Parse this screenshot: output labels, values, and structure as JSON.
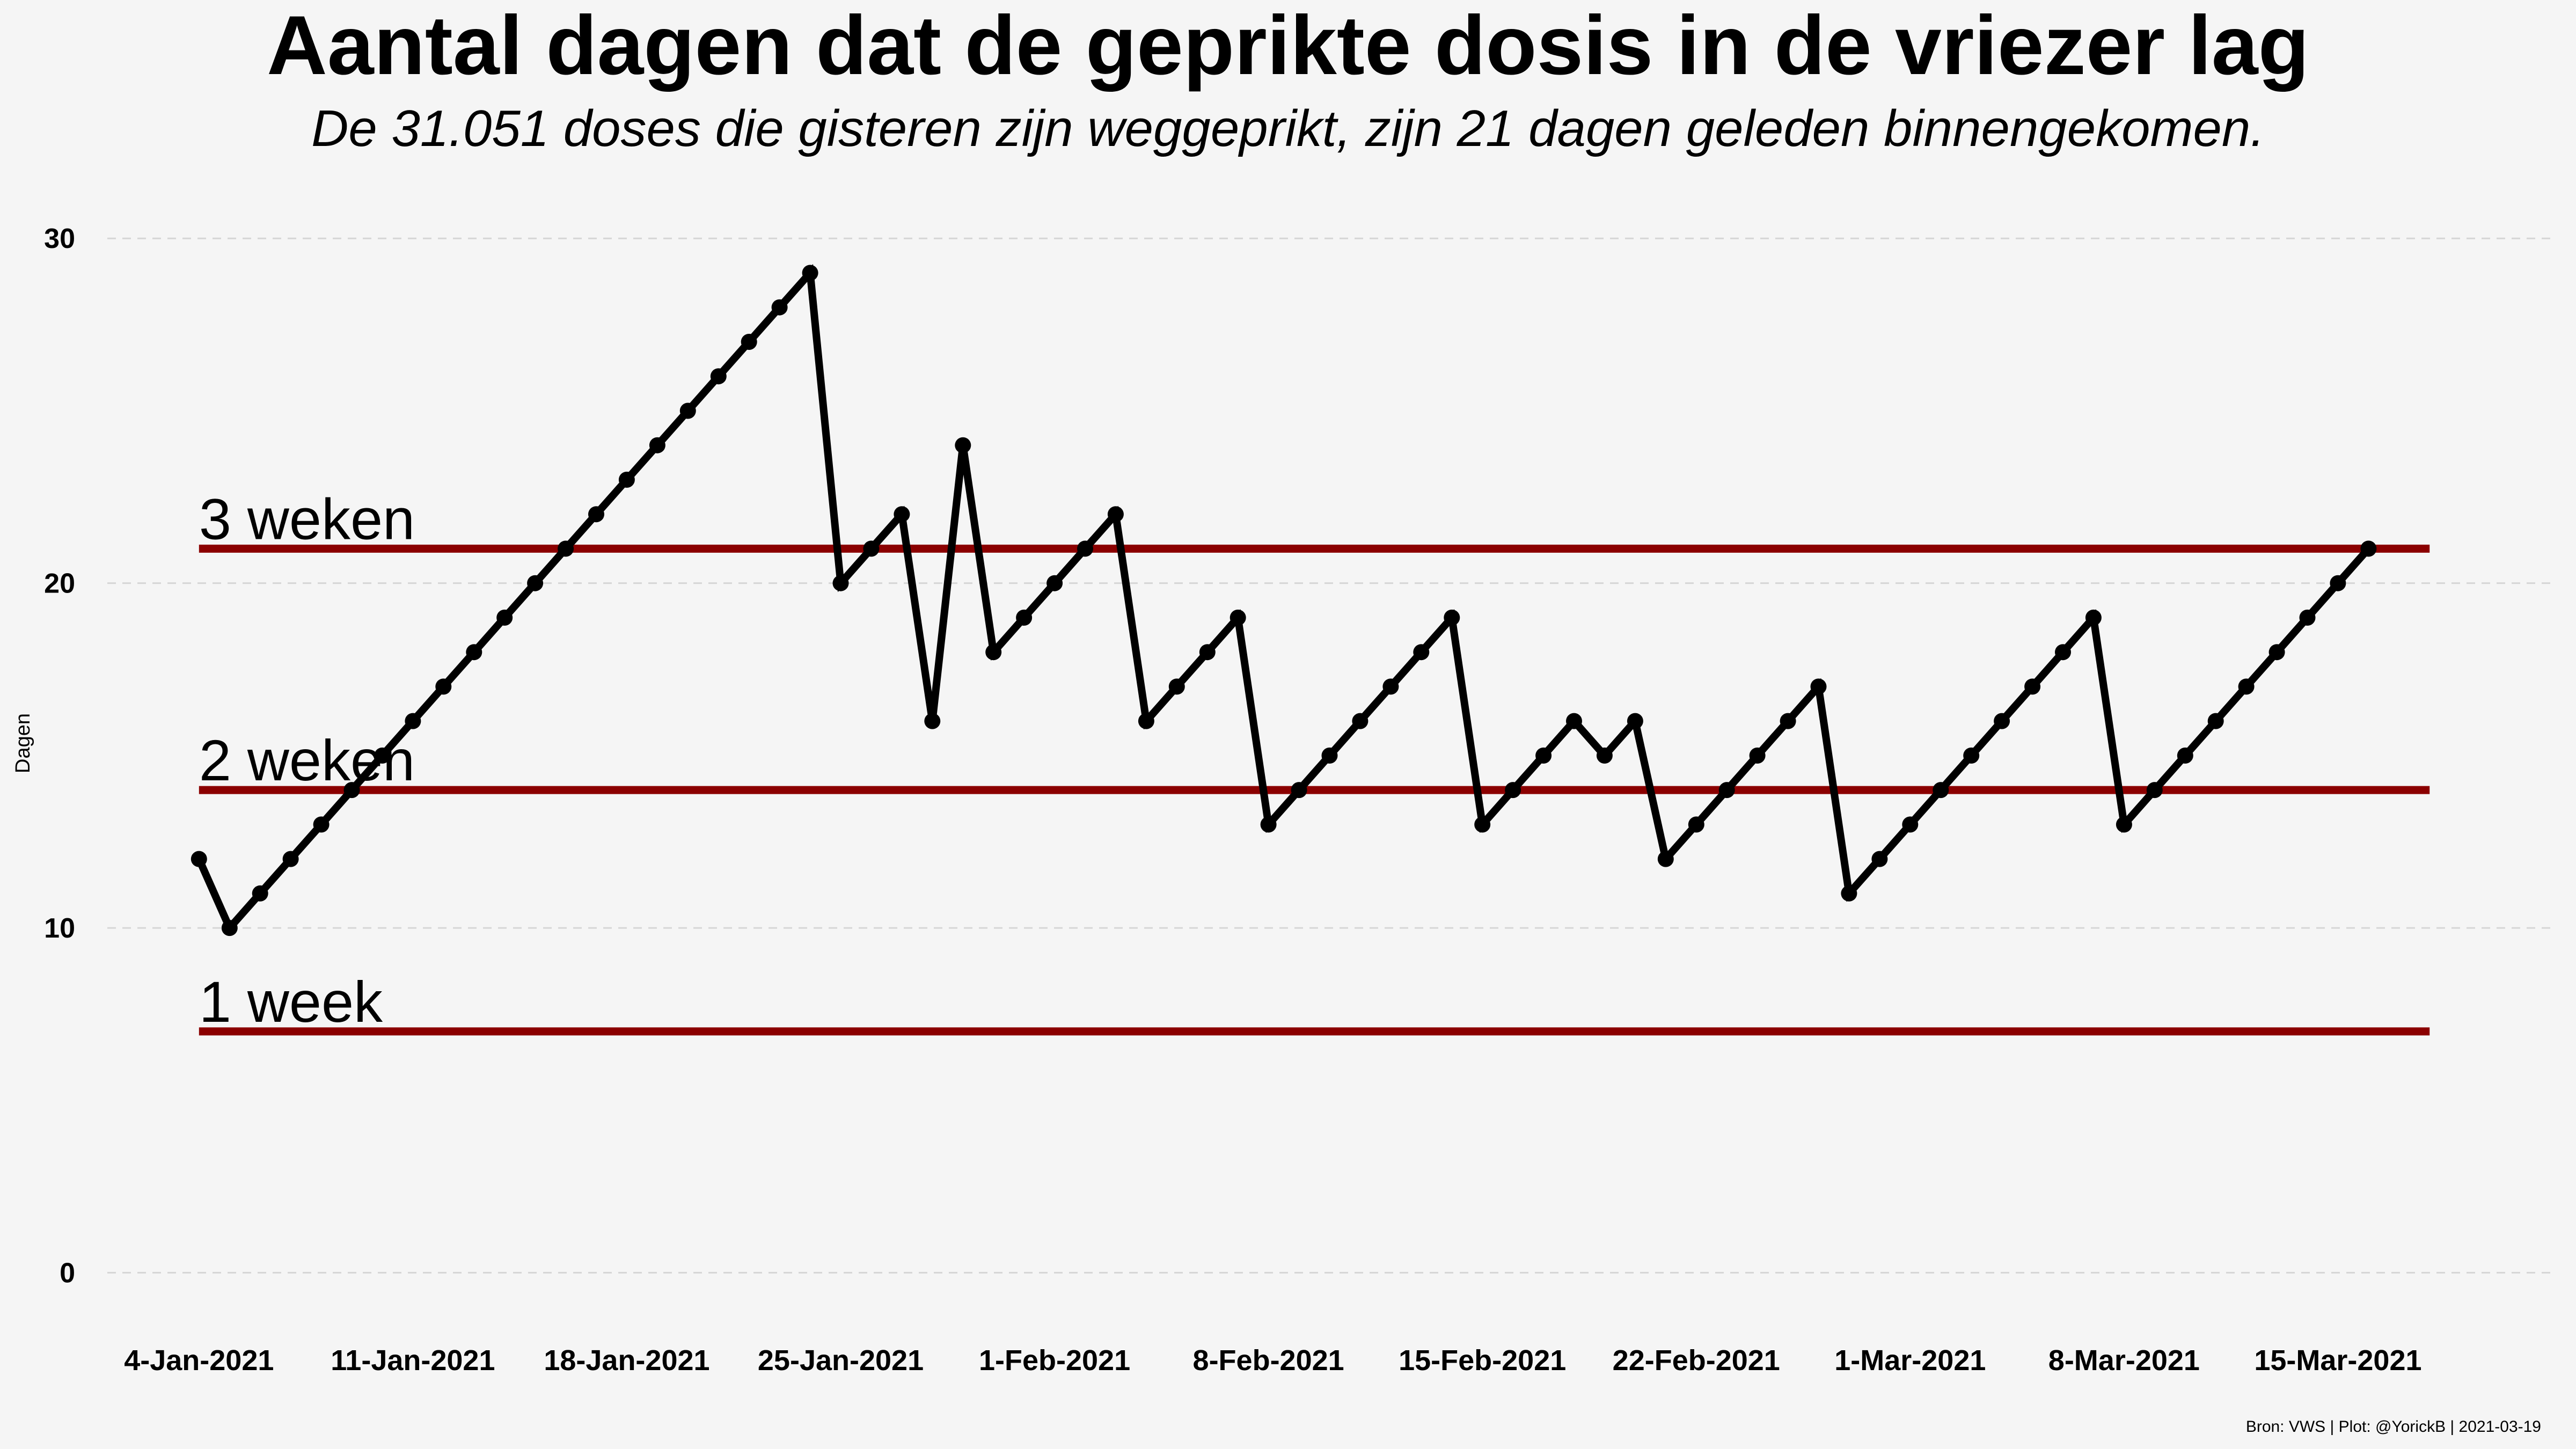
{
  "chart_data": {
    "type": "line",
    "title": "Aantal dagen dat de geprikte dosis in de vriezer lag",
    "subtitle": "De 31.051 doses die gisteren zijn weggeprikt, zijn 21 dagen geleden binnengekomen.",
    "xlabel": "",
    "ylabel": "Dagen",
    "caption": "Bron: VWS | Plot: @YorickB  |  2021-03-19",
    "x_start": "2021-01-04",
    "x_end": "2021-03-18",
    "xlim": [
      "2021-01-01",
      "2021-03-22"
    ],
    "ylim": [
      -2,
      31
    ],
    "yticks": [
      0,
      10,
      20,
      30
    ],
    "xticks": [
      {
        "date": "2021-01-04",
        "label": "4-Jan-2021"
      },
      {
        "date": "2021-01-11",
        "label": "11-Jan-2021"
      },
      {
        "date": "2021-01-18",
        "label": "18-Jan-2021"
      },
      {
        "date": "2021-01-25",
        "label": "25-Jan-2021"
      },
      {
        "date": "2021-02-01",
        "label": "1-Feb-2021"
      },
      {
        "date": "2021-02-08",
        "label": "8-Feb-2021"
      },
      {
        "date": "2021-02-15",
        "label": "15-Feb-2021"
      },
      {
        "date": "2021-02-22",
        "label": "22-Feb-2021"
      },
      {
        "date": "2021-03-01",
        "label": "1-Mar-2021"
      },
      {
        "date": "2021-03-08",
        "label": "8-Mar-2021"
      },
      {
        "date": "2021-03-15",
        "label": "15-Mar-2021"
      }
    ],
    "grid": "horizontal dashed",
    "series": [
      {
        "color": "#000000",
        "values": [
          12,
          10,
          11,
          12,
          13,
          14,
          15,
          16,
          17,
          18,
          19,
          20,
          21,
          22,
          23,
          24,
          25,
          26,
          27,
          28,
          29,
          20,
          21,
          22,
          16,
          24,
          18,
          19,
          20,
          21,
          22,
          16,
          17,
          18,
          19,
          13,
          14,
          15,
          16,
          17,
          18,
          19,
          13,
          14,
          15,
          16,
          15,
          16,
          12,
          13,
          14,
          15,
          16,
          17,
          11,
          12,
          13,
          14,
          15,
          16,
          17,
          18,
          19,
          13,
          14,
          15,
          16,
          17,
          18,
          19,
          20,
          21
        ]
      }
    ],
    "reference_lines": [
      {
        "label": "3 weken",
        "y": 21,
        "color": "#8b0000"
      },
      {
        "label": "2 weken",
        "y": 14,
        "color": "#8b0000"
      },
      {
        "label": "1 week",
        "y": 7,
        "color": "#8b0000"
      }
    ]
  }
}
